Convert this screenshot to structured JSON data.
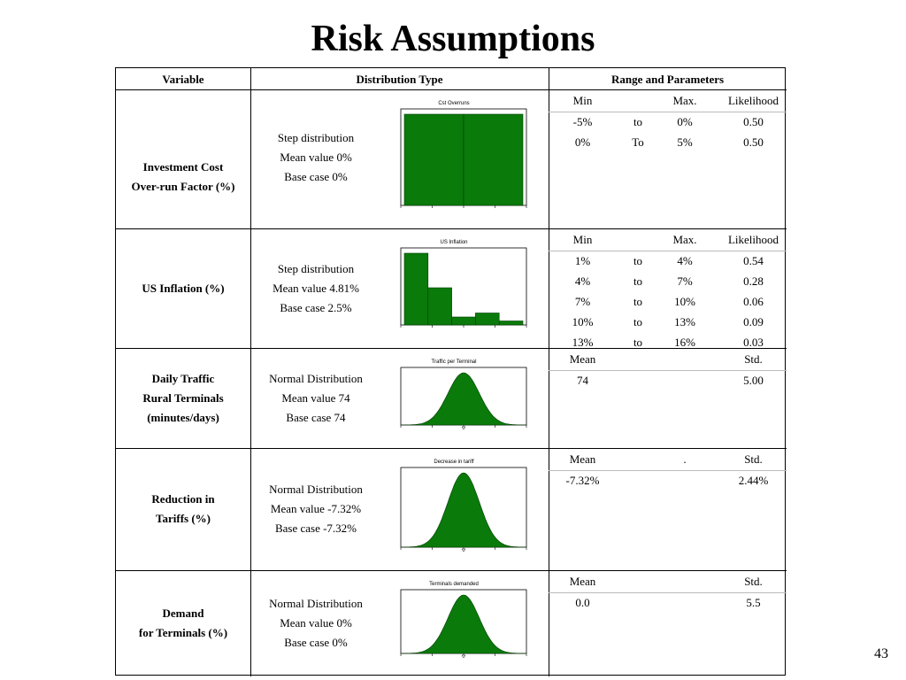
{
  "slide": {
    "title": "Risk Assumptions",
    "page_number": "43"
  },
  "colors": {
    "bar_fill": "#0a7a0a",
    "bar_stroke": "#003c00"
  },
  "headers": {
    "variable": "Variable",
    "distribution": "Distribution Type",
    "range": "Range and Parameters"
  },
  "rows": [
    {
      "variable": [
        "Investment Cost",
        "Over-run Factor (%)"
      ],
      "distribution": [
        "Step distribution",
        "Mean  value 0%",
        "Base case 0%"
      ],
      "params_header": [
        "Min",
        "",
        "Max.",
        "Likelihood"
      ],
      "params": [
        [
          "-5%",
          "to",
          "0%",
          "0.50"
        ],
        [
          "0%",
          "To",
          "5%",
          "0.50"
        ]
      ],
      "chart_title": "Cst Overruns",
      "chart_data": {
        "type": "bar",
        "categories": [
          "-5% to 0%",
          "0% to 5%"
        ],
        "values": [
          1000,
          1000
        ]
      }
    },
    {
      "variable": [
        "US Inflation (%)"
      ],
      "distribution": [
        "Step distribution",
        "Mean value 4.81%",
        "Base case 2.5%"
      ],
      "params_header": [
        "Min",
        "",
        "Max.",
        "Likelihood"
      ],
      "params": [
        [
          "1%",
          "to",
          "4%",
          "0.54"
        ],
        [
          "4%",
          "to",
          "7%",
          "0.28"
        ],
        [
          "7%",
          "to",
          "10%",
          "0.06"
        ],
        [
          "10%",
          "to",
          "13%",
          "0.09"
        ],
        [
          "13%",
          "to",
          "16%",
          "0.03"
        ]
      ],
      "chart_title": "US Inflation",
      "chart_data": {
        "type": "bar",
        "categories": [
          "1-4%",
          "4-7%",
          "7-10%",
          "10-13%",
          "13-16%"
        ],
        "values": [
          0.54,
          0.28,
          0.06,
          0.09,
          0.03
        ]
      }
    },
    {
      "variable": [
        "Daily Traffic",
        "Rural Terminals",
        "(minutes/days)"
      ],
      "distribution": [
        "Normal Distribution",
        "Mean value 74",
        "Base case 74"
      ],
      "params_header": [
        "Mean",
        "",
        "",
        "Std."
      ],
      "params": [
        [
          "74",
          "",
          "",
          "5.00"
        ]
      ],
      "chart_title": "Traffic per Terminal",
      "chart_data": {
        "type": "area",
        "mean": 74,
        "std": 5.0
      }
    },
    {
      "variable": [
        "Reduction in",
        "Tariffs (%)"
      ],
      "distribution": [
        "Normal Distribution",
        "Mean value  -7.32%",
        "Base case -7.32%"
      ],
      "params_header": [
        "Mean",
        "",
        ".",
        "Std."
      ],
      "params": [
        [
          "-7.32%",
          "",
          "",
          "2.44%"
        ]
      ],
      "chart_title": "Decrease in tariff",
      "chart_data": {
        "type": "area",
        "mean": -7.32,
        "std": 2.44
      }
    },
    {
      "variable": [
        "Demand",
        "for Terminals (%)"
      ],
      "distribution": [
        "Normal Distribution",
        "Mean value  0%",
        "Base case 0%"
      ],
      "params_header": [
        "Mean",
        "",
        "",
        "Std."
      ],
      "params": [
        [
          "0.0",
          "",
          "",
          "5.5"
        ]
      ],
      "chart_title": "Terminals demanded",
      "chart_data": {
        "type": "area",
        "mean": 0.0,
        "std": 5.5
      }
    }
  ]
}
